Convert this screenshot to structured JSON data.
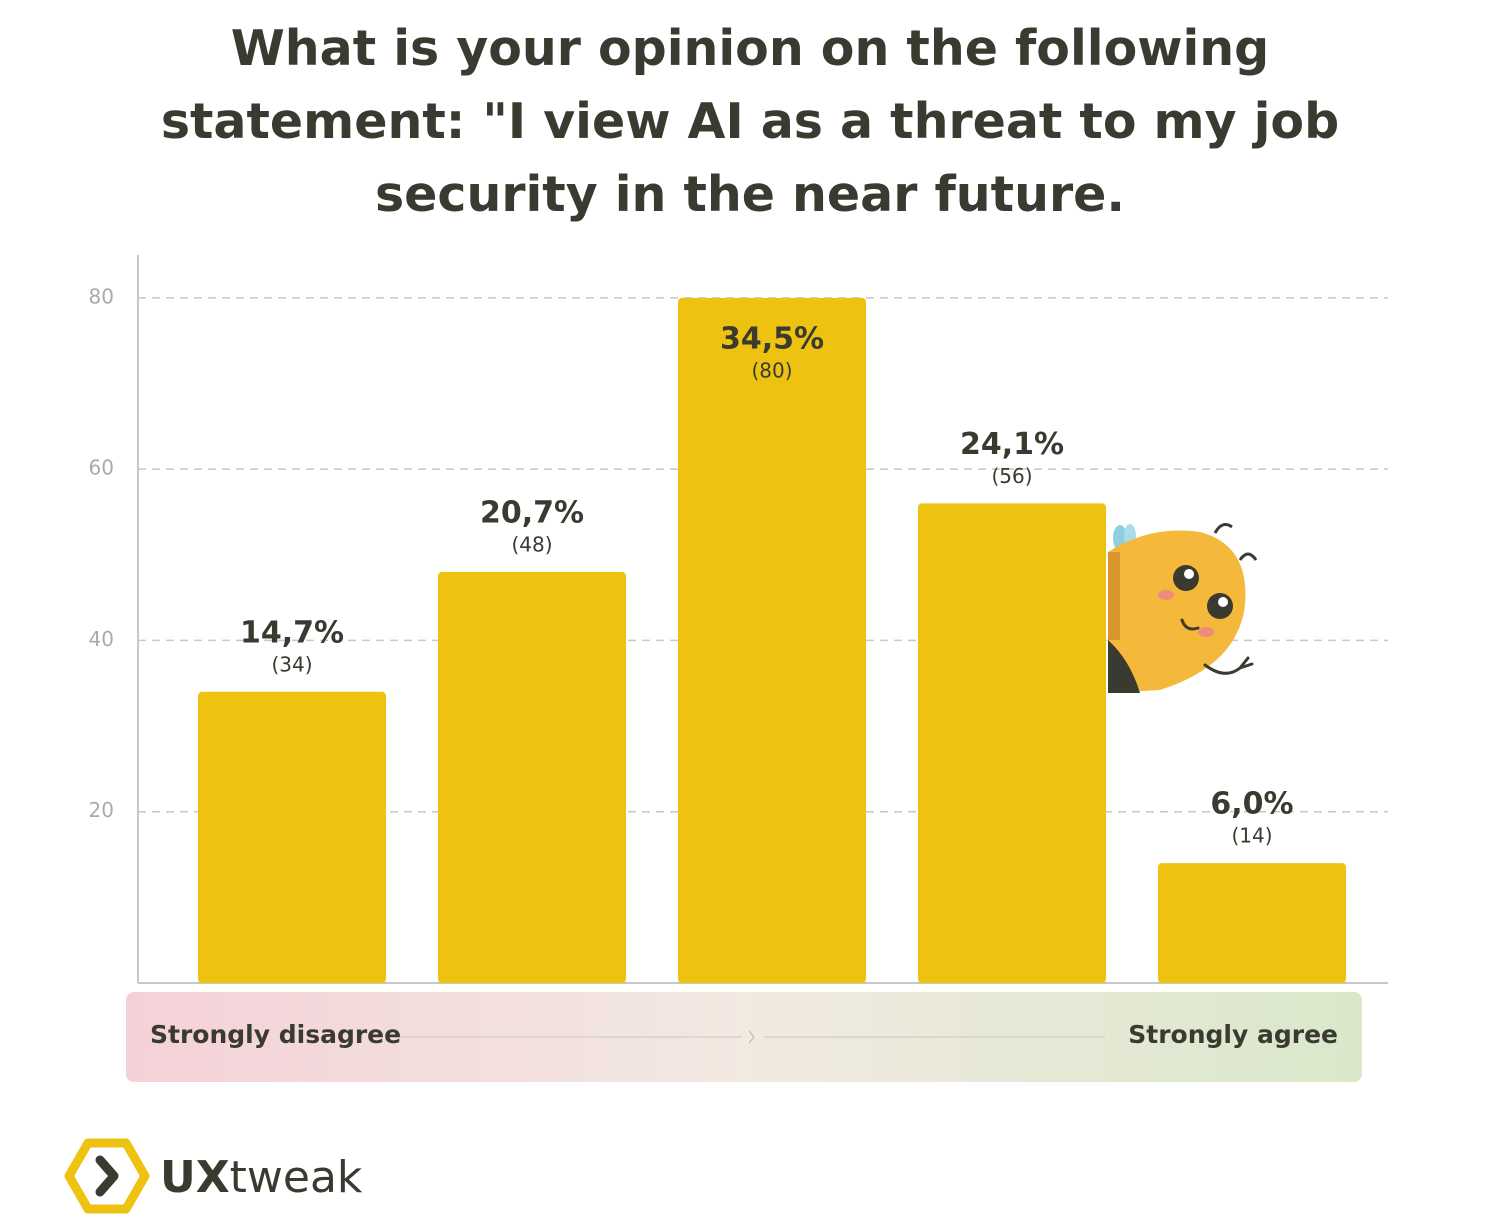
{
  "chart_data": {
    "type": "bar",
    "title": "What is your opinion on the following statement: \"I view AI as a threat to my job security in the near future.",
    "values": [
      34,
      48,
      80,
      56,
      14
    ],
    "value_labels": [
      "(34)",
      "(48)",
      "(80)",
      "(56)",
      "(14)"
    ],
    "percent_labels": [
      "14,7%",
      "20,7%",
      "34,5%",
      "24,1%",
      "6,0%"
    ],
    "color": "#eec210",
    "ylim": [
      0,
      85
    ],
    "yticks": [
      20,
      40,
      60,
      80
    ],
    "grid": true,
    "scale_labels": [
      "Strongly disagree",
      "Strongly agree"
    ]
  },
  "logo": {
    "bold": "UX",
    "light": "tweak"
  }
}
